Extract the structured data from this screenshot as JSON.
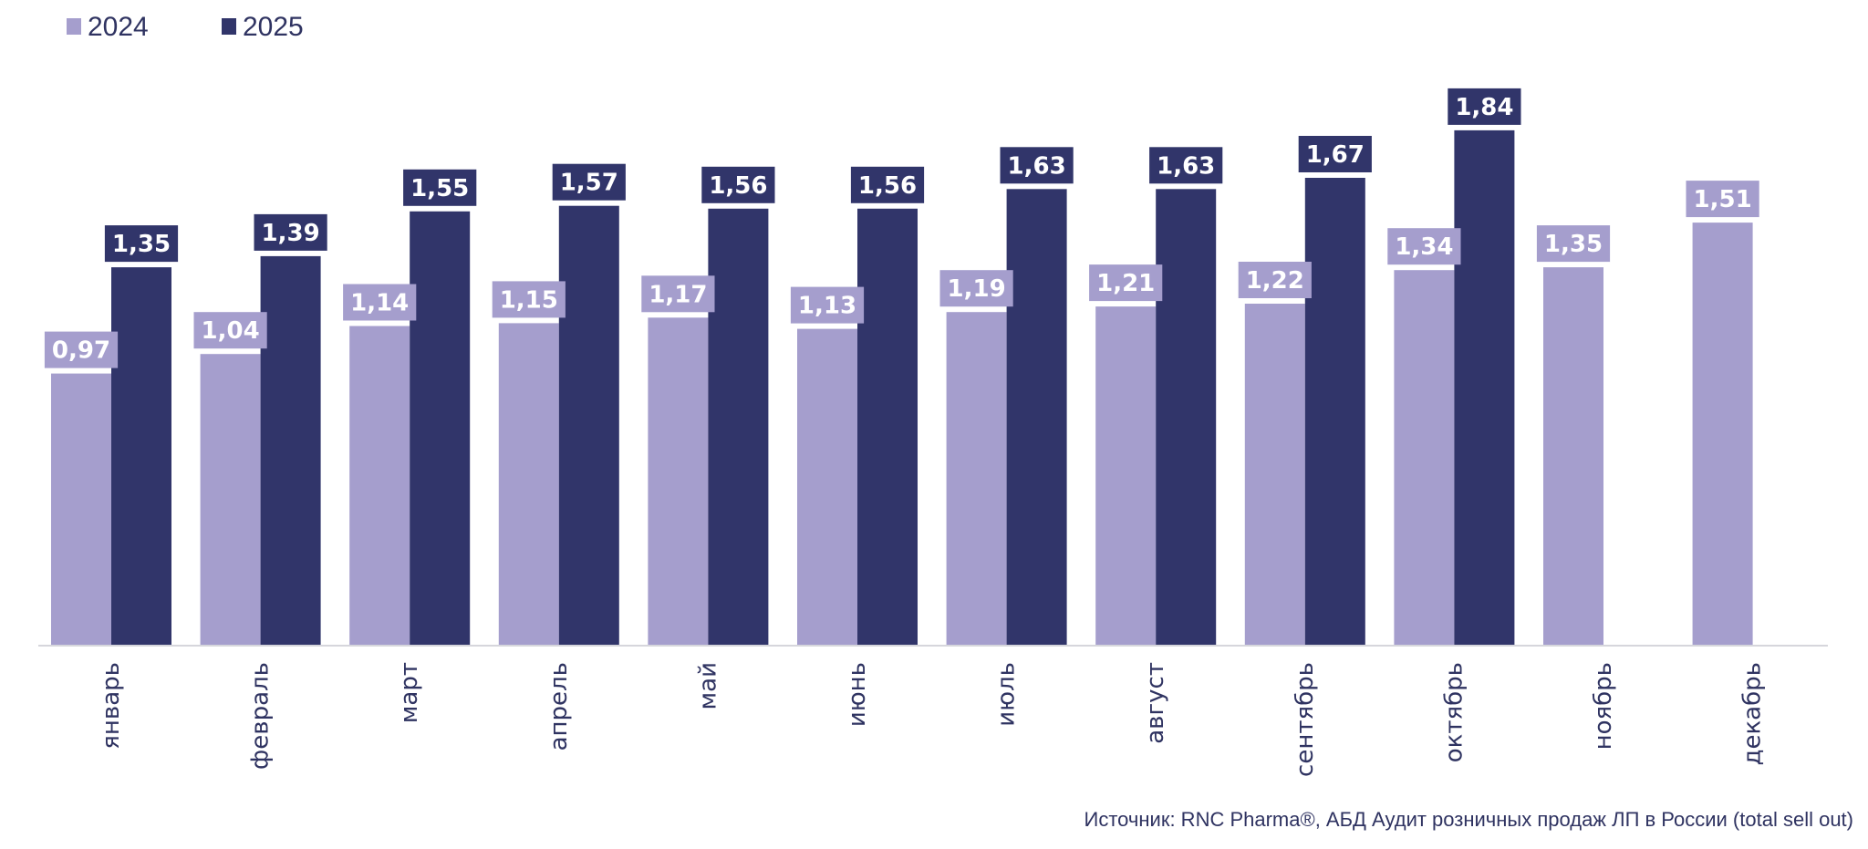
{
  "chart_data": {
    "type": "bar",
    "categories": [
      "январь",
      "февраль",
      "март",
      "апрель",
      "май",
      "июнь",
      "июль",
      "август",
      "сентябрь",
      "октябрь",
      "ноябрь",
      "декабрь"
    ],
    "series": [
      {
        "name": "2024",
        "color": "#a59ecd",
        "values": [
          0.97,
          1.04,
          1.14,
          1.15,
          1.17,
          1.13,
          1.19,
          1.21,
          1.22,
          1.34,
          1.35,
          1.51
        ],
        "labels": [
          "0,97",
          "1,04",
          "1,14",
          "1,15",
          "1,17",
          "1,13",
          "1,19",
          "1,21",
          "1,22",
          "1,34",
          "1,35",
          "1,51"
        ]
      },
      {
        "name": "2025",
        "color": "#31356a",
        "values": [
          1.35,
          1.39,
          1.55,
          1.57,
          1.56,
          1.56,
          1.63,
          1.63,
          1.67,
          1.84,
          null,
          null
        ],
        "labels": [
          "1,35",
          "1,39",
          "1,55",
          "1,57",
          "1,56",
          "1,56",
          "1,63",
          "1,63",
          "1,67",
          "1,84",
          null,
          null
        ]
      }
    ],
    "title": "",
    "xlabel": "",
    "ylabel": "",
    "ylim": [
      0,
      1.98
    ],
    "legend_position": "top-left",
    "grid": false,
    "axis_color": "#c8c8d0",
    "text_color": "#2f3361"
  },
  "source_note": "Источник: RNC Pharma®, АБД Аудит розничных продаж ЛП в России (total sell out)"
}
